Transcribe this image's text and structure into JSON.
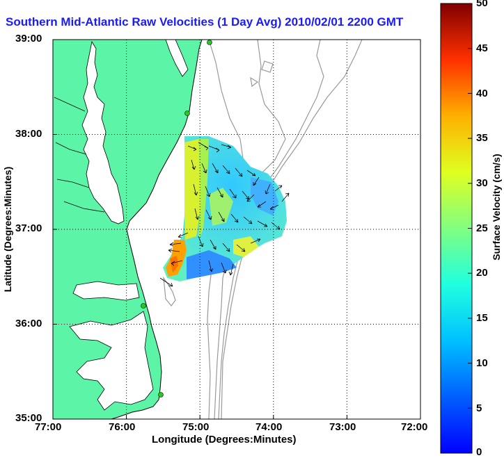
{
  "title": "Southern Mid-Atlantic Raw Velocities (1 Day Avg) 2010/02/01 2200 GMT",
  "x_axis": {
    "label": "Longitude (Degrees:Minutes)",
    "ticks": [
      "77:00",
      "76:00",
      "75:00",
      "74:00",
      "73:00",
      "72:00"
    ]
  },
  "y_axis": {
    "label": "Latitude (Degrees:Minutes)",
    "ticks": [
      "39:00",
      "38:00",
      "37:00",
      "36:00",
      "35:00"
    ]
  },
  "colorbar": {
    "label": "Surface Velocity (cm/s)",
    "ticks": [
      "50",
      "45",
      "40",
      "35",
      "30",
      "25",
      "20",
      "15",
      "10",
      "5",
      "0"
    ],
    "min": 0,
    "max": 50,
    "colormap": "jet"
  },
  "map": {
    "extent": {
      "lon": [
        -77,
        -72
      ],
      "lat": [
        35,
        39
      ]
    },
    "land_color": "#5cf5a8",
    "water_color": "#ffffff",
    "bathymetry_color": "#999999",
    "grid": "dotted",
    "station_color": "#22cc22"
  }
}
